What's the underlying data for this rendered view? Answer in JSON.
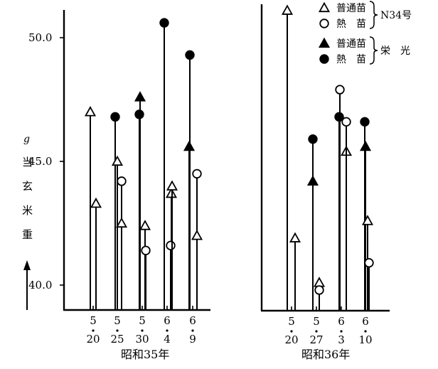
{
  "chart_data": [
    {
      "type": "scatter",
      "title": "",
      "xlabel": "昭和35年",
      "ylabel_unit": "g",
      "ylabel": "当玄米重",
      "ylim": [
        39.0,
        51.2
      ],
      "yticks": [
        40.0,
        45.0,
        50.0
      ],
      "ytick_labels": [
        "40.0",
        "45.0",
        "50.0"
      ],
      "categories": [
        {
          "top": "5",
          "bottom": "20"
        },
        {
          "top": "5",
          "bottom": "25"
        },
        {
          "top": "5",
          "bottom": "30"
        },
        {
          "top": "6",
          "bottom": "4"
        },
        {
          "top": "6",
          "bottom": "9"
        }
      ],
      "series": [
        {
          "name": "N34号 普通苗",
          "marker": "open-triangle",
          "values": [
            47.0,
            45.0,
            42.4,
            43.7,
            42.0
          ]
        },
        {
          "name": "N34号 熱苗",
          "marker": "open-circle",
          "values": [
            null,
            44.2,
            41.4,
            41.6,
            44.5
          ]
        },
        {
          "name": "栄光 普通苗",
          "marker": "filled-triangle",
          "values": [
            null,
            null,
            47.6,
            null,
            45.6
          ]
        },
        {
          "name": "栄光 熱苗",
          "marker": "filled-circle",
          "values": [
            null,
            46.8,
            46.9,
            50.6,
            49.3
          ]
        }
      ],
      "extra_points": [
        {
          "series": "N34号 普通苗",
          "category": 0,
          "value": 43.3
        },
        {
          "series": "N34号 普通苗",
          "category": 1,
          "value": 42.5
        },
        {
          "series": "N34号 普通苗",
          "category": 3,
          "value": 44.0
        }
      ]
    },
    {
      "type": "scatter",
      "title": "",
      "xlabel": "昭和36年",
      "ylim": [
        39.0,
        51.2
      ],
      "categories": [
        {
          "top": "5",
          "bottom": "20"
        },
        {
          "top": "5",
          "bottom": "27"
        },
        {
          "top": "6",
          "bottom": "3"
        },
        {
          "top": "6",
          "bottom": "10"
        }
      ],
      "series": [
        {
          "name": "N34号 普通苗",
          "marker": "open-triangle",
          "values": [
            51.1,
            40.1,
            45.4,
            42.6
          ]
        },
        {
          "name": "N34号 熱苗",
          "marker": "open-circle",
          "values": [
            null,
            39.8,
            47.9,
            40.9
          ]
        },
        {
          "name": "栄光 普通苗",
          "marker": "filled-triangle",
          "values": [
            null,
            44.2,
            null,
            45.6
          ]
        },
        {
          "name": "栄光 熱苗",
          "marker": "filled-circle",
          "values": [
            null,
            45.9,
            46.8,
            46.6
          ]
        }
      ],
      "extra_points": [
        {
          "series": "N34号 普通苗",
          "category": 0,
          "value": 41.9
        },
        {
          "series": "N34号 熱苗",
          "category": 2,
          "value": 46.6
        }
      ]
    }
  ],
  "legend": {
    "groups": [
      {
        "name": "N34号",
        "items": [
          {
            "label": "普通苗",
            "marker": "open-triangle"
          },
          {
            "label": "熱　苗",
            "marker": "open-circle"
          }
        ]
      },
      {
        "name": "栄　光",
        "items": [
          {
            "label": "普通苗",
            "marker": "filled-triangle"
          },
          {
            "label": "熱　苗",
            "marker": "filled-circle"
          }
        ]
      }
    ]
  }
}
